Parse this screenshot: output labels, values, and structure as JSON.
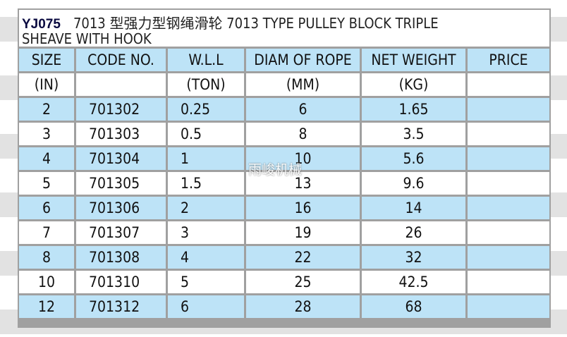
{
  "title": {
    "model": "YJ075",
    "line1": "7013 型强力型钢绳滑轮 7013 TYPE PULLEY BLOCK TRIPLE",
    "line2": "SHEAVE WITH HOOK"
  },
  "columns": [
    "SIZE",
    "CODE NO.",
    "W.L.L",
    "DIAM OF ROPE",
    "NET WEIGHT",
    "PRICE"
  ],
  "units": [
    "(IN)",
    "",
    "(TON)",
    "(MM)",
    "(KG)",
    ""
  ],
  "rows": [
    [
      "2",
      "701302",
      "0.25",
      "6",
      "1.65",
      ""
    ],
    [
      "3",
      "701303",
      "0.5",
      "8",
      "3.5",
      ""
    ],
    [
      "4",
      "701304",
      "1",
      "10",
      "5.6",
      ""
    ],
    [
      "5",
      "701305",
      "1.5",
      "13",
      "9.6",
      ""
    ],
    [
      "6",
      "701306",
      "2",
      "16",
      "14",
      ""
    ],
    [
      "7",
      "701307",
      "3",
      "19",
      "26",
      ""
    ],
    [
      "8",
      "701308",
      "4",
      "22",
      "32",
      ""
    ],
    [
      "10",
      "701310",
      "5",
      "25",
      "42.5",
      ""
    ],
    [
      "12",
      "701312",
      "6",
      "28",
      "68",
      ""
    ]
  ],
  "watermark": "雨峻机械",
  "colors": {
    "row_blue": "#bde3f7",
    "grid": "#a0a0a0"
  }
}
